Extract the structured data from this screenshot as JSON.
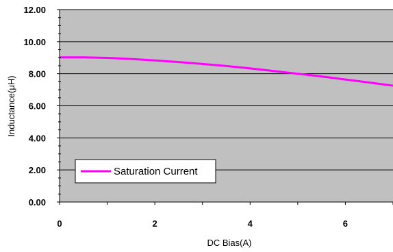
{
  "chart_data": {
    "type": "line",
    "xlabel": "DC Bias(A)",
    "ylabel": "Inductance(μH)",
    "xlim": [
      0,
      7
    ],
    "ylim": [
      0,
      12
    ],
    "x_ticks": [
      "0",
      "2",
      "4",
      "6"
    ],
    "y_ticks": [
      "0.00",
      "2.00",
      "4.00",
      "6.00",
      "8.00",
      "10.00",
      "12.00"
    ],
    "grid": "horizontal",
    "plot_background": "#c0c0c0",
    "legend_position": "lower-left",
    "series": [
      {
        "name": "Saturation Current",
        "color": "#ff00ff",
        "x": [
          0,
          0.5,
          1,
          1.5,
          2,
          2.5,
          3,
          3.5,
          4,
          4.5,
          5,
          5.5,
          6,
          6.5,
          7
        ],
        "y": [
          9.02,
          9.02,
          8.99,
          8.92,
          8.83,
          8.73,
          8.61,
          8.48,
          8.33,
          8.17,
          8.0,
          7.83,
          7.64,
          7.45,
          7.25
        ]
      }
    ]
  }
}
